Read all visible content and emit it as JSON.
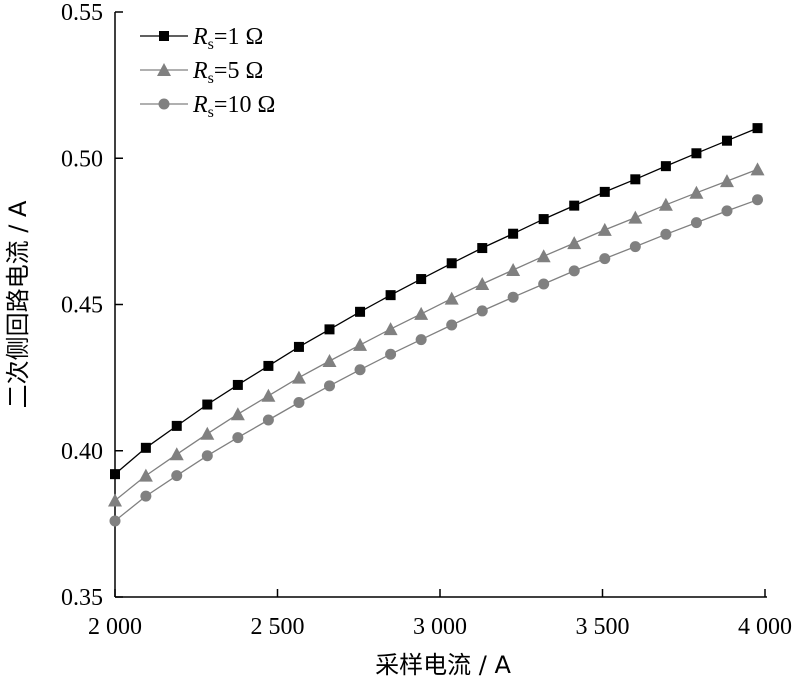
{
  "chart_data": {
    "type": "line",
    "xlabel": "采样电流 / A",
    "ylabel": "二次侧回路电流 / A",
    "xlim": [
      2000,
      4000
    ],
    "ylim": [
      0.35,
      0.55
    ],
    "x_ticks": [
      2000,
      2500,
      3000,
      3500,
      4000
    ],
    "x_tick_labels": [
      "2 000",
      "2 500",
      "3 000",
      "3 500",
      "4 000"
    ],
    "y_ticks": [
      0.35,
      0.4,
      0.45,
      0.5,
      0.55
    ],
    "y_tick_labels": [
      "0.35",
      "0.40",
      "0.45",
      "0.50",
      "0.55"
    ],
    "grid": false,
    "legend_position": "top-left",
    "x": [
      2000,
      2095,
      2190,
      2284,
      2378,
      2472,
      2566,
      2660,
      2754,
      2848,
      2942,
      3036,
      3130,
      3225,
      3319,
      3413,
      3507,
      3601,
      3695,
      3789,
      3883,
      3977
    ],
    "series": [
      {
        "name": "Rs=1 Ω",
        "legend_italic": "R",
        "legend_sub": "s",
        "legend_rest": "=1 Ω",
        "marker": "square",
        "color": "#000000",
        "values": [
          0.392,
          0.401,
          0.4085,
          0.4158,
          0.4225,
          0.429,
          0.4355,
          0.4415,
          0.4475,
          0.4532,
          0.4587,
          0.4641,
          0.4693,
          0.4742,
          0.4792,
          0.4838,
          0.4885,
          0.4928,
          0.4973,
          0.5017,
          0.506,
          0.5103
        ]
      },
      {
        "name": "Rs=5 Ω",
        "legend_italic": "R",
        "legend_sub": "s",
        "legend_rest": "=5 Ω",
        "marker": "triangle",
        "color": "#808080",
        "values": [
          0.383,
          0.3915,
          0.3988,
          0.4058,
          0.4125,
          0.4188,
          0.425,
          0.4307,
          0.4362,
          0.4416,
          0.4468,
          0.452,
          0.457,
          0.4618,
          0.4665,
          0.471,
          0.4755,
          0.4797,
          0.4841,
          0.4882,
          0.4922,
          0.4962
        ]
      },
      {
        "name": "Rs=10 Ω",
        "legend_italic": "R",
        "legend_sub": "s",
        "legend_rest": "=10 Ω",
        "marker": "circle",
        "color": "#808080",
        "values": [
          0.376,
          0.3845,
          0.3915,
          0.3983,
          0.4045,
          0.4105,
          0.4165,
          0.4222,
          0.4277,
          0.433,
          0.438,
          0.443,
          0.4478,
          0.4525,
          0.457,
          0.4615,
          0.4657,
          0.4698,
          0.474,
          0.478,
          0.482,
          0.4858
        ]
      }
    ]
  }
}
